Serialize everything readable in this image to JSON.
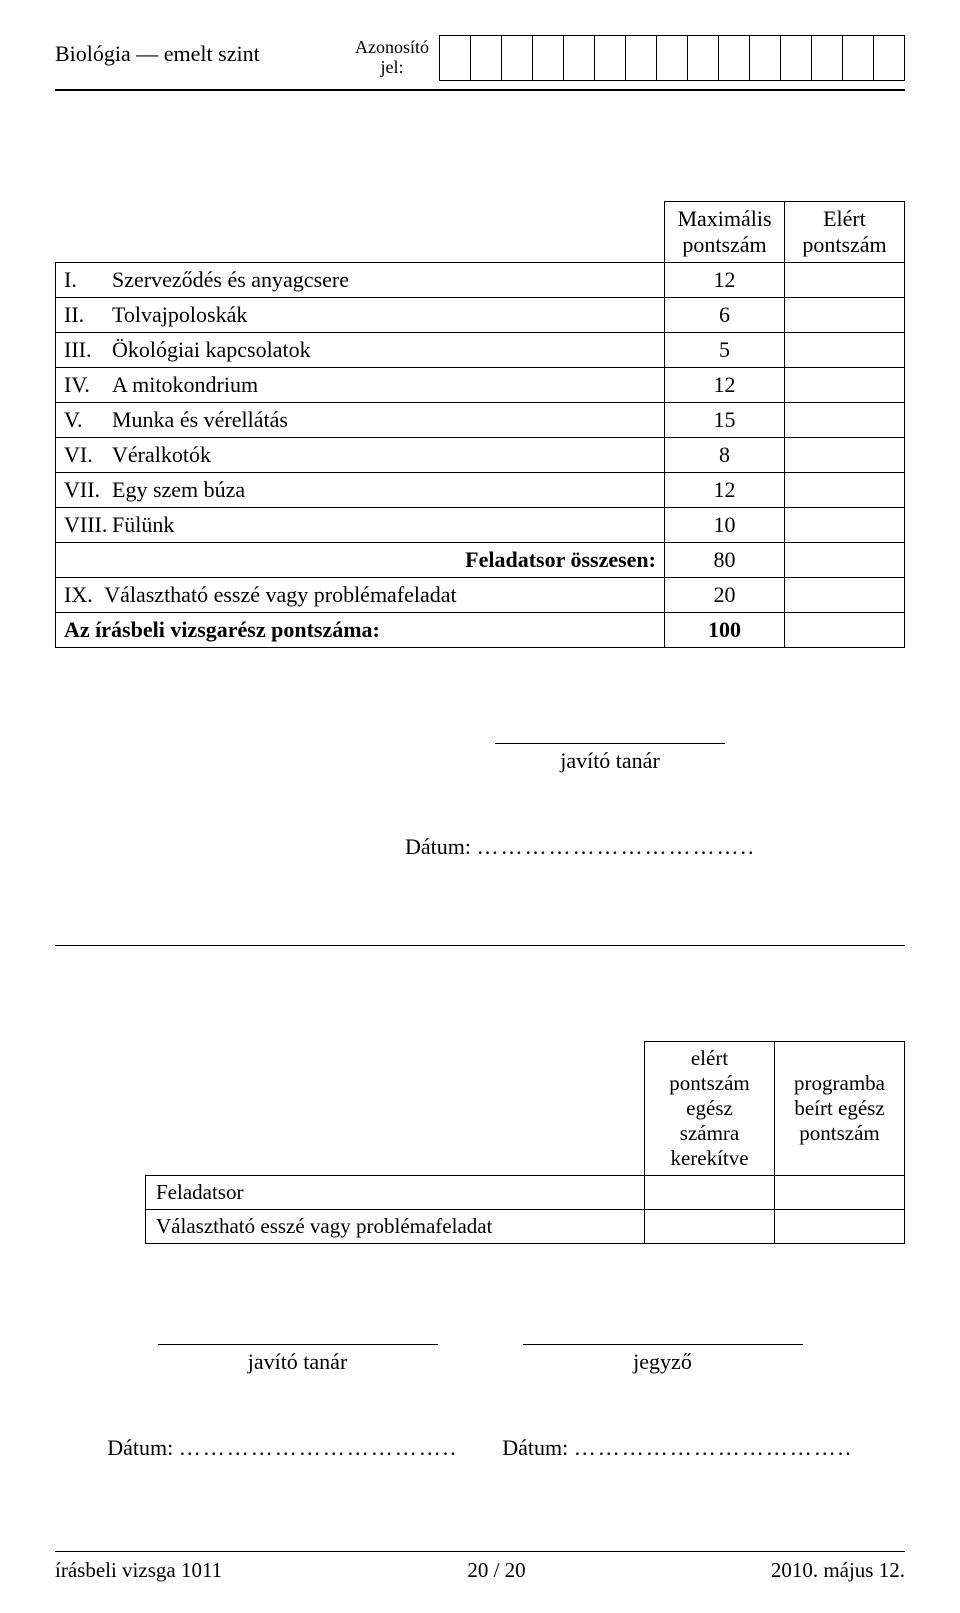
{
  "header": {
    "subject": "Biológia — emelt szint",
    "id_label_line1": "Azonosító",
    "id_label_line2": "jel:",
    "id_box_count": 15
  },
  "score_table": {
    "col_max": "Maximális pontszám",
    "col_achieved": "Elért pontszám",
    "rows": [
      {
        "num": "I.",
        "title": "Szerveződés és anyagcsere",
        "max": "12"
      },
      {
        "num": "II.",
        "title": "Tolvajpoloskák",
        "max": "6"
      },
      {
        "num": "III.",
        "title": "Ökológiai kapcsolatok",
        "max": "5"
      },
      {
        "num": "IV.",
        "title": "A mitokondrium",
        "max": "12"
      },
      {
        "num": "V.",
        "title": "Munka és vérellátás",
        "max": "15"
      },
      {
        "num": "VI.",
        "title": "Véralkotók",
        "max": "8"
      },
      {
        "num": "VII.",
        "title": "Egy szem búza",
        "max": "12"
      },
      {
        "num": "VIII.",
        "title": "Fülünk",
        "max": "10"
      }
    ],
    "sum_label": "Feladatsor összesen:",
    "sum_value": "80",
    "ix_num": "IX.",
    "ix_title": "Választható esszé vagy problémafeladat",
    "ix_max": "20",
    "total_label": "Az írásbeli vizsgarész pontszáma:",
    "total_value": "100"
  },
  "signature1": {
    "label": "javító tanár",
    "date_label": "Dátum: ",
    "date_dots": "…………………………….."
  },
  "prog_table": {
    "col1": "elért pontszám egész számra kerekítve",
    "col2": "programba beírt egész pontszám",
    "row1": "Feladatsor",
    "row2": "Választható esszé vagy problémafeladat"
  },
  "signature2": {
    "left": "javító tanár",
    "right": "jegyző",
    "date_label_left": "Dátum: ",
    "date_dots_left": "……………………………..",
    "date_label_right": "Dátum: ",
    "date_dots_right": "…………………………….."
  },
  "footer": {
    "left": "írásbeli vizsga 1011",
    "center": "20 / 20",
    "right": "2010. május 12."
  }
}
